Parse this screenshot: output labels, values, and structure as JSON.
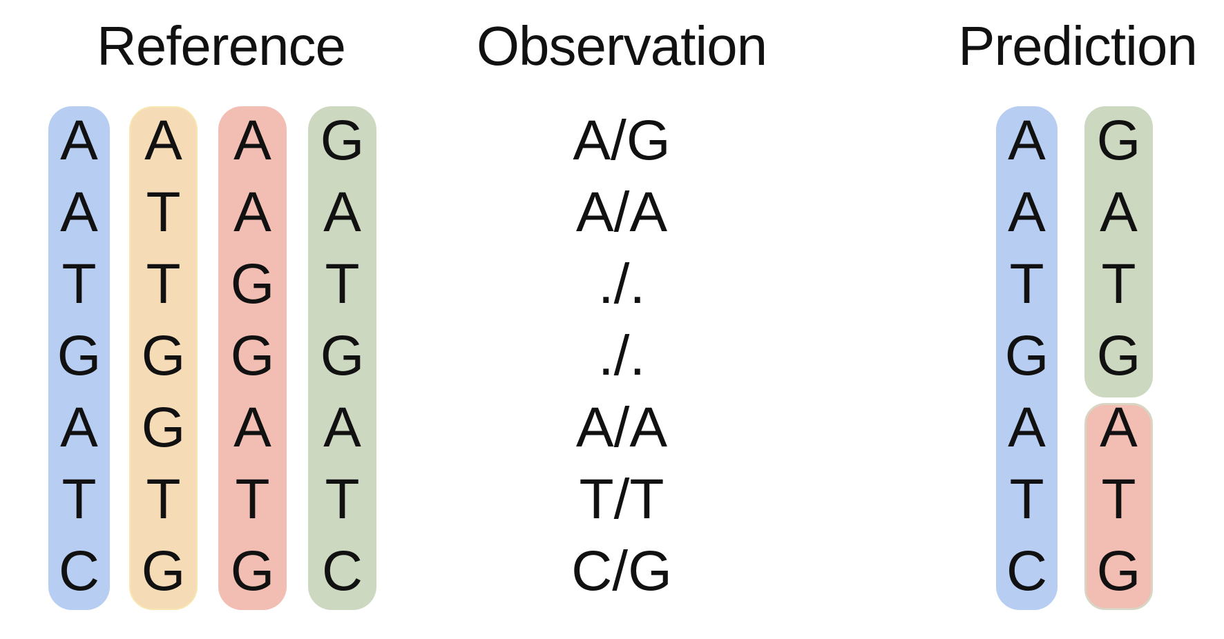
{
  "colors": {
    "blue": "#b7cdf2",
    "orange": "#f5dcb7",
    "red": "#f2bdb3",
    "green": "#cdd8c0",
    "text": "#111111"
  },
  "reference": {
    "title": "Reference",
    "columns": [
      {
        "color": "blue",
        "bases": [
          "A",
          "A",
          "T",
          "G",
          "A",
          "T",
          "C"
        ]
      },
      {
        "color": "orange",
        "bases": [
          "A",
          "T",
          "T",
          "G",
          "G",
          "T",
          "G"
        ]
      },
      {
        "color": "red",
        "bases": [
          "A",
          "A",
          "G",
          "G",
          "A",
          "T",
          "G"
        ]
      },
      {
        "color": "green",
        "bases": [
          "G",
          "A",
          "T",
          "G",
          "A",
          "T",
          "C"
        ]
      }
    ]
  },
  "observation": {
    "title": "Observation",
    "values": [
      "A/G",
      "A/A",
      "./.",
      "./.",
      "A/A",
      "T/T",
      "C/G"
    ]
  },
  "prediction": {
    "title": "Prediction",
    "haplotype1": {
      "color": "blue",
      "bases": [
        "A",
        "A",
        "T",
        "G",
        "A",
        "T",
        "C"
      ]
    },
    "haplotype2": [
      {
        "color": "green",
        "bases": [
          "G",
          "A",
          "T",
          "G"
        ]
      },
      {
        "color": "red",
        "bases": [
          "A",
          "T",
          "G"
        ]
      }
    ]
  }
}
